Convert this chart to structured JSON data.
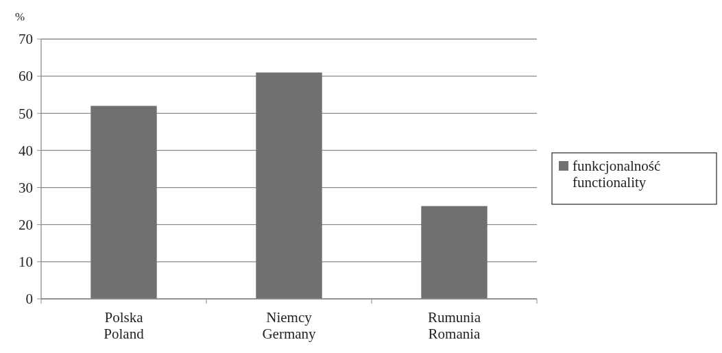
{
  "chart_data": {
    "type": "bar",
    "ylabel": "%",
    "categories": [
      "Polska\nPoland",
      "Niemcy\nGermany",
      "Rumunia\nRomania"
    ],
    "series": [
      {
        "name": "funkcjonalność\nfunctionality",
        "color": "#717070",
        "values": [
          52,
          61,
          25
        ]
      }
    ],
    "ylim": [
      0,
      70
    ],
    "yticks": [
      0,
      10,
      20,
      30,
      40,
      50,
      60,
      70
    ],
    "grid": "y",
    "legend": "right"
  }
}
